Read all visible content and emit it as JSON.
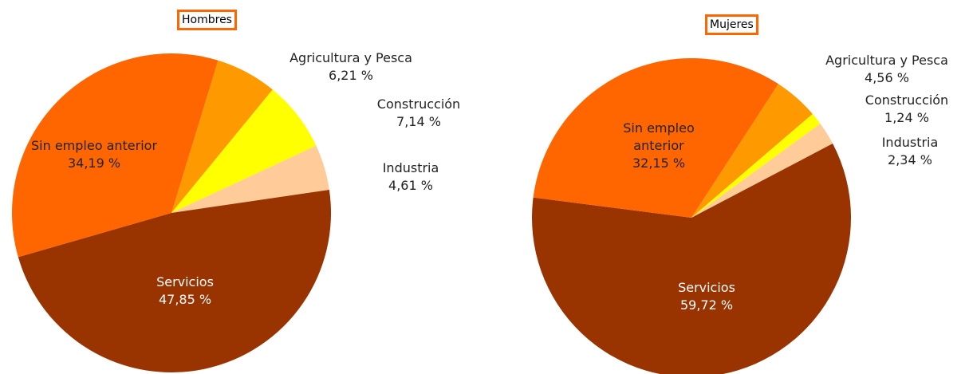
{
  "chart_data": [
    {
      "type": "pie",
      "title": "Hombres",
      "categories": [
        "Agricultura y Pesca",
        "Construcción",
        "Industria",
        "Servicios",
        "Sin empleo anterior"
      ],
      "values": [
        6.21,
        7.14,
        4.61,
        47.85,
        34.19
      ],
      "value_labels": [
        "6,21 %",
        "7,14 %",
        "4,61 %",
        "47,85 %",
        "34,19 %"
      ],
      "colors": [
        "#ff9900",
        "#ffff00",
        "#ffcc99",
        "#993300",
        "#ff6600"
      ]
    },
    {
      "type": "pie",
      "title": "Mujeres",
      "categories": [
        "Agricultura y Pesca",
        "Construcción",
        "Industria",
        "Servicios",
        "Sin empleo anterior"
      ],
      "values": [
        4.56,
        1.24,
        2.34,
        59.72,
        32.15
      ],
      "value_labels": [
        "4,56 %",
        "1,24 %",
        "2,34 %",
        "59,72 %",
        "32,15 %"
      ],
      "colors": [
        "#ff9900",
        "#ffff00",
        "#ffcc99",
        "#993300",
        "#ff6600"
      ]
    }
  ]
}
